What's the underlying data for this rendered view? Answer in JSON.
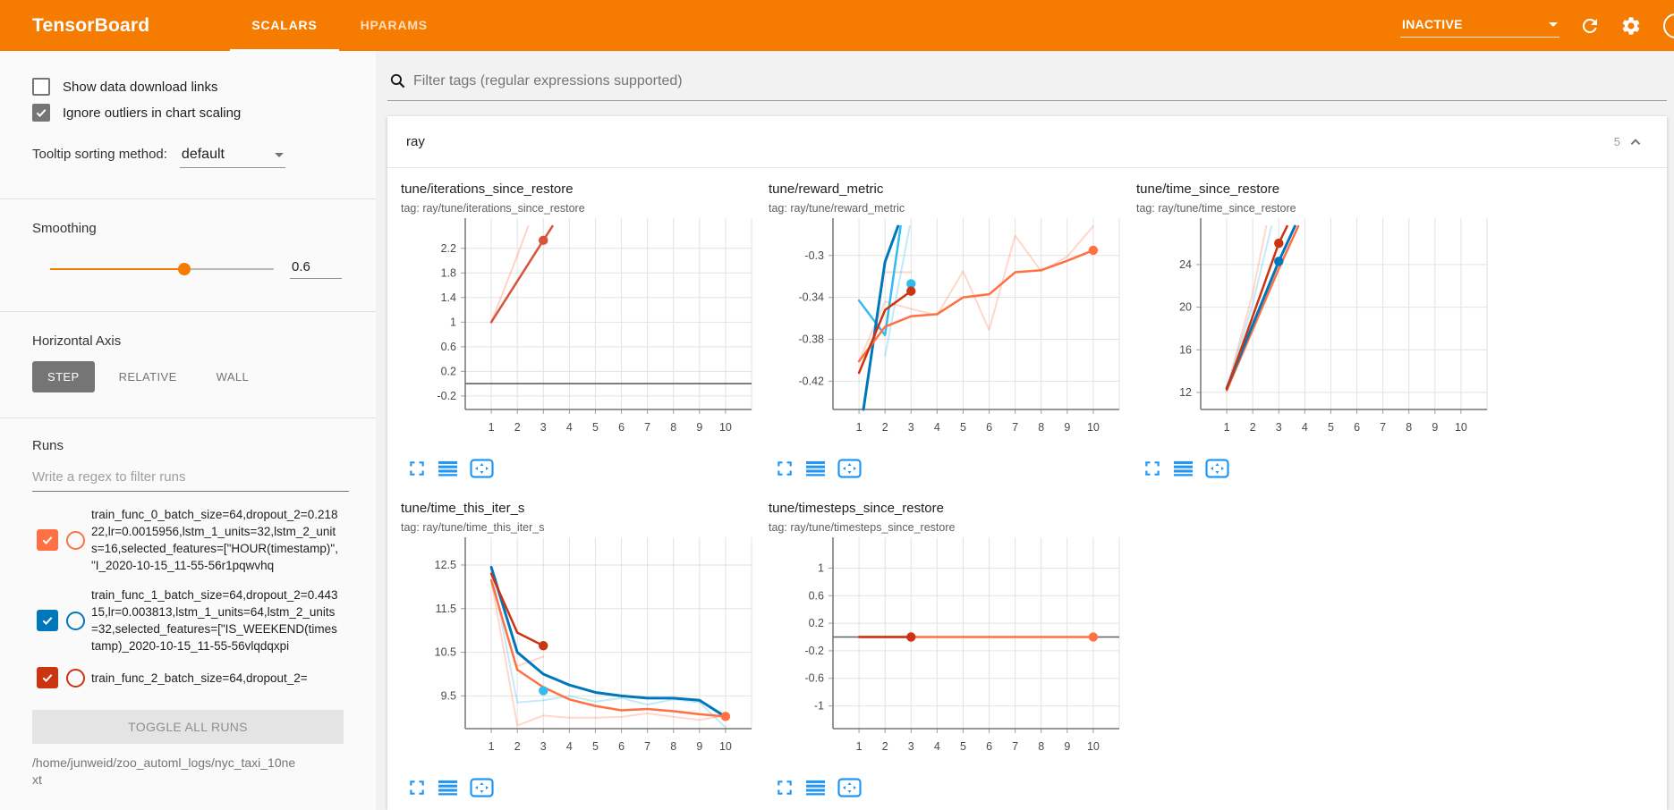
{
  "header": {
    "logo": "TensorBoard",
    "tabs": [
      {
        "label": "SCALARS",
        "active": true
      },
      {
        "label": "HPARAMS",
        "active": false
      }
    ],
    "status": "INACTIVE",
    "icons": [
      "refresh-icon",
      "settings-icon",
      "help-icon"
    ]
  },
  "sidebar": {
    "checkboxes": [
      {
        "label": "Show data download links",
        "checked": false
      },
      {
        "label": "Ignore outliers in chart scaling",
        "checked": true
      }
    ],
    "tooltip_sort": {
      "label": "Tooltip sorting method:",
      "value": "default"
    },
    "smoothing": {
      "label": "Smoothing",
      "value": "0.6",
      "percent": 60
    },
    "horizontal_axis": {
      "label": "Horizontal Axis",
      "options": [
        {
          "label": "STEP",
          "active": true
        },
        {
          "label": "RELATIVE",
          "active": false
        },
        {
          "label": "WALL",
          "active": false
        }
      ]
    },
    "runs": {
      "label": "Runs",
      "filter_placeholder": "Write a regex to filter runs",
      "items": [
        {
          "color": "#ff7043",
          "checked": true,
          "label": "train_func_0_batch_size=64,dropout_2=0.21822,lr=0.0015956,lstm_1_units=32,lstm_2_units=16,selected_features=[\"HOUR(timestamp)\", \"I_2020-10-15_11-55-56r1pqwvhq"
        },
        {
          "color": "#0077bb",
          "checked": true,
          "label": "train_func_1_batch_size=64,dropout_2=0.44315,lr=0.003813,lstm_1_units=64,lstm_2_units=32,selected_features=[\"IS_WEEKEND(timestamp)_2020-10-15_11-55-56vlqdqxpi"
        },
        {
          "color": "#cc3311",
          "checked": true,
          "label": "train_func_2_batch_size=64,dropout_2="
        }
      ],
      "toggle_all_label": "TOGGLE ALL RUNS",
      "log_path": "/home/junweid/zoo_automl_logs/nyc_taxi_10next"
    }
  },
  "main": {
    "filter_placeholder": "Filter tags (regular expressions supported)",
    "section": {
      "title": "ray",
      "count": "5"
    },
    "chart_actions": [
      "fullscreen-icon",
      "runs-list-icon",
      "fit-domain-icon"
    ]
  },
  "chart_data": [
    {
      "type": "line",
      "title": "tune/iterations_since_restore",
      "tag": "tag: ray/tune/iterations_since_restore",
      "x_ticks": [
        1,
        2,
        3,
        4,
        5,
        6,
        7,
        8,
        9,
        10
      ],
      "y_ticks": [
        -0.2,
        0.2,
        0.6,
        1,
        1.4,
        1.8,
        2.2
      ],
      "ylim": [
        -0.42,
        2.56
      ],
      "baseline": 0,
      "series": [
        {
          "color": "#ff7043",
          "opacity": 0.3,
          "width": 2,
          "points": [
            [
              1,
              1
            ],
            [
              2,
              2.08
            ],
            [
              2.42,
              2.56
            ]
          ]
        },
        {
          "color": "#d9533b",
          "opacity": 1,
          "width": 2.5,
          "points": [
            [
              1,
              1
            ],
            [
              3,
              2.33
            ],
            [
              3.35,
              2.56
            ]
          ],
          "marker": [
            3,
            2.33
          ]
        }
      ]
    },
    {
      "type": "line",
      "title": "tune/reward_metric",
      "tag": "tag: ray/tune/reward_metric",
      "x_ticks": [
        1,
        2,
        3,
        4,
        5,
        6,
        7,
        8,
        9,
        10
      ],
      "y_ticks": [
        -0.42,
        -0.38,
        -0.34,
        -0.3
      ],
      "ylim": [
        -0.447,
        -0.272
      ],
      "series": [
        {
          "color": "#ff7043",
          "opacity": 0.28,
          "width": 2,
          "points": [
            [
              1,
              -0.401
            ],
            [
              2,
              -0.344
            ],
            [
              3,
              -0.351
            ],
            [
              4,
              -0.357
            ],
            [
              5,
              -0.315
            ],
            [
              6,
              -0.371
            ],
            [
              7,
              -0.281
            ],
            [
              8,
              -0.315
            ],
            [
              9,
              -0.301
            ],
            [
              10,
              -0.272
            ]
          ]
        },
        {
          "color": "#ff7043",
          "opacity": 0.28,
          "width": 2,
          "points": [
            [
              2,
              -0.316
            ],
            [
              3,
              -0.316
            ]
          ]
        },
        {
          "color": "#33bbee",
          "opacity": 0.3,
          "width": 2,
          "points": [
            [
              2,
              -0.396
            ],
            [
              2.95,
              -0.272
            ]
          ]
        },
        {
          "color": "#33bbee",
          "opacity": 1,
          "width": 2.5,
          "points": [
            [
              1,
              -0.343
            ],
            [
              2,
              -0.376
            ],
            [
              2.6,
              -0.272
            ]
          ],
          "marker": [
            3,
            -0.327
          ]
        },
        {
          "color": "#0077bb",
          "opacity": 1,
          "width": 3,
          "points": [
            [
              1.17,
              -0.447
            ],
            [
              2,
              -0.306
            ],
            [
              2.5,
              -0.272
            ]
          ]
        },
        {
          "color": "#ff7043",
          "opacity": 1,
          "width": 2.5,
          "points": [
            [
              1,
              -0.401
            ],
            [
              2,
              -0.368
            ],
            [
              3,
              -0.358
            ],
            [
              4,
              -0.356
            ],
            [
              5,
              -0.34
            ],
            [
              6,
              -0.337
            ],
            [
              7,
              -0.316
            ],
            [
              8,
              -0.314
            ],
            [
              9,
              -0.305
            ],
            [
              10,
              -0.295
            ]
          ],
          "marker": [
            10,
            -0.295
          ]
        },
        {
          "color": "#cc3311",
          "opacity": 1,
          "width": 2.5,
          "points": [
            [
              1,
              -0.412
            ],
            [
              2,
              -0.352
            ],
            [
              3,
              -0.334
            ]
          ],
          "marker": [
            3,
            -0.334
          ]
        }
      ]
    },
    {
      "type": "line",
      "title": "tune/time_since_restore",
      "tag": "tag: ray/tune/time_since_restore",
      "x_ticks": [
        1,
        2,
        3,
        4,
        5,
        6,
        7,
        8,
        9,
        10
      ],
      "y_ticks": [
        12,
        16,
        20,
        24
      ],
      "ylim": [
        10.4,
        27.6
      ],
      "series": [
        {
          "color": "#ff7043",
          "opacity": 0.28,
          "width": 2,
          "points": [
            [
              1,
              12.3
            ],
            [
              2,
              21.3
            ],
            [
              2.52,
              27.6
            ]
          ]
        },
        {
          "color": "#33bbee",
          "opacity": 0.3,
          "width": 2,
          "points": [
            [
              1,
              12.4
            ],
            [
              2,
              20.3
            ],
            [
              2.72,
              27.6
            ]
          ]
        },
        {
          "color": "#ff7043",
          "opacity": 1,
          "width": 2.5,
          "points": [
            [
              1,
              12.2
            ],
            [
              3,
              23.6
            ],
            [
              3.75,
              27.6
            ]
          ]
        },
        {
          "color": "#0077bb",
          "opacity": 1,
          "width": 3,
          "points": [
            [
              1,
              12.4
            ],
            [
              3,
              24.3
            ],
            [
              3.62,
              27.6
            ]
          ],
          "marker": [
            3,
            24.3
          ]
        },
        {
          "color": "#cc3311",
          "opacity": 1,
          "width": 2.5,
          "points": [
            [
              1,
              12.3
            ],
            [
              3,
              26.0
            ],
            [
              3.32,
              27.6
            ]
          ],
          "marker": [
            3,
            26.0
          ]
        }
      ]
    },
    {
      "type": "line",
      "title": "tune/time_this_iter_s",
      "tag": "tag: ray/tune/time_this_iter_s",
      "x_ticks": [
        1,
        2,
        3,
        4,
        5,
        6,
        7,
        8,
        9,
        10
      ],
      "y_ticks": [
        9.5,
        10.5,
        11.5,
        12.5
      ],
      "ylim": [
        8.75,
        12.95
      ],
      "series": [
        {
          "color": "#ff7043",
          "opacity": 0.28,
          "width": 2,
          "points": [
            [
              1,
              12.15
            ],
            [
              2,
              8.82
            ],
            [
              3,
              9.05
            ],
            [
              4,
              9.0
            ],
            [
              5,
              9.0
            ],
            [
              6,
              9.02
            ],
            [
              7,
              9.1
            ],
            [
              8,
              9.02
            ],
            [
              9,
              8.95
            ],
            [
              10,
              9.05
            ]
          ]
        },
        {
          "color": "#ff7043",
          "opacity": 0.28,
          "width": 2,
          "points": [
            [
              2,
              10.18
            ],
            [
              3,
              10.4
            ]
          ]
        },
        {
          "color": "#33bbee",
          "opacity": 0.3,
          "width": 2,
          "points": [
            [
              1,
              12.4
            ],
            [
              2,
              9.35
            ],
            [
              3,
              9.4
            ],
            [
              4,
              9.5
            ],
            [
              5,
              9.37
            ],
            [
              6,
              9.45
            ],
            [
              7,
              9.3
            ],
            [
              8,
              9.42
            ],
            [
              9,
              9.35
            ],
            [
              10,
              8.78
            ]
          ]
        },
        {
          "color": "#33bbee",
          "opacity": 1,
          "width": 2.5,
          "points": [
            [
              3,
              9.62
            ]
          ],
          "marker": [
            3,
            9.62
          ]
        },
        {
          "color": "#0077bb",
          "opacity": 1,
          "width": 3,
          "points": [
            [
              1,
              12.45
            ],
            [
              2,
              10.5
            ],
            [
              3,
              10.0
            ],
            [
              4,
              9.75
            ],
            [
              5,
              9.58
            ],
            [
              6,
              9.5
            ],
            [
              7,
              9.45
            ],
            [
              8,
              9.45
            ],
            [
              9,
              9.4
            ],
            [
              10,
              9.02
            ]
          ]
        },
        {
          "color": "#ff7043",
          "opacity": 1,
          "width": 2.5,
          "points": [
            [
              1,
              12.15
            ],
            [
              2,
              10.1
            ],
            [
              3,
              9.7
            ],
            [
              4,
              9.42
            ],
            [
              5,
              9.27
            ],
            [
              6,
              9.17
            ],
            [
              7,
              9.2
            ],
            [
              8,
              9.15
            ],
            [
              9,
              9.08
            ],
            [
              10,
              9.03
            ]
          ],
          "marker": [
            10,
            9.03
          ]
        },
        {
          "color": "#cc3311",
          "opacity": 1,
          "width": 2.5,
          "points": [
            [
              1,
              12.3
            ],
            [
              2,
              10.95
            ],
            [
              3,
              10.65
            ]
          ],
          "marker": [
            3,
            10.65
          ]
        }
      ]
    },
    {
      "type": "line",
      "title": "tune/timesteps_since_restore",
      "tag": "tag: ray/tune/timesteps_since_restore",
      "x_ticks": [
        1,
        2,
        3,
        4,
        5,
        6,
        7,
        8,
        9,
        10
      ],
      "y_ticks": [
        1,
        0.6,
        0.2,
        -0.2,
        -0.6,
        -1
      ],
      "ylim": [
        -1.33,
        1.33
      ],
      "baseline": 0,
      "series": [
        {
          "color": "#ff7043",
          "opacity": 1,
          "width": 2.5,
          "points": [
            [
              1,
              0
            ],
            [
              10,
              0
            ]
          ],
          "marker": [
            10,
            0
          ]
        },
        {
          "color": "#cc3311",
          "opacity": 1,
          "width": 2.5,
          "points": [
            [
              1,
              0
            ],
            [
              3,
              0
            ]
          ],
          "marker": [
            3,
            0
          ]
        }
      ]
    }
  ]
}
